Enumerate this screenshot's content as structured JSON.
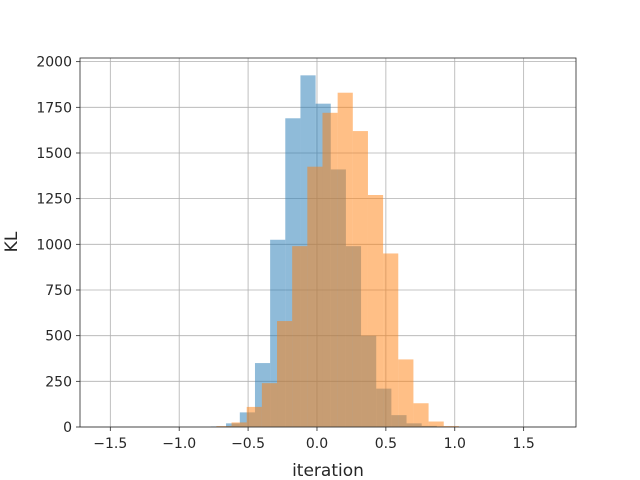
{
  "chart_data": {
    "type": "bar",
    "title": "",
    "xlabel": "iteration",
    "ylabel": "KL",
    "xlim": [
      -1.72,
      1.88
    ],
    "ylim": [
      0,
      2020
    ],
    "grid": true,
    "legend": "none",
    "x_ticks": [
      -1.5,
      -1.0,
      -0.5,
      0.0,
      0.5,
      1.0,
      1.5
    ],
    "x_tick_labels": [
      "−1.5",
      "−1.0",
      "−0.5",
      "0.0",
      "0.5",
      "1.0",
      "1.5"
    ],
    "y_ticks": [
      0,
      250,
      500,
      750,
      1000,
      1250,
      1500,
      1750,
      2000
    ],
    "y_tick_labels": [
      "0",
      "250",
      "500",
      "750",
      "1000",
      "1250",
      "1500",
      "1750",
      "2000"
    ],
    "series": [
      {
        "color": "#1f77b4",
        "alpha": 0.5,
        "bins": [
          {
            "x0": -0.77,
            "x1": -0.66,
            "count": 3
          },
          {
            "x0": -0.66,
            "x1": -0.56,
            "count": 20
          },
          {
            "x0": -0.56,
            "x1": -0.45,
            "count": 80
          },
          {
            "x0": -0.45,
            "x1": -0.34,
            "count": 350
          },
          {
            "x0": -0.34,
            "x1": -0.23,
            "count": 1025
          },
          {
            "x0": -0.23,
            "x1": -0.12,
            "count": 1690
          },
          {
            "x0": -0.12,
            "x1": -0.01,
            "count": 1925
          },
          {
            "x0": -0.01,
            "x1": 0.1,
            "count": 1770
          },
          {
            "x0": 0.1,
            "x1": 0.21,
            "count": 1410
          },
          {
            "x0": 0.21,
            "x1": 0.32,
            "count": 990
          },
          {
            "x0": 0.32,
            "x1": 0.43,
            "count": 500
          },
          {
            "x0": 0.43,
            "x1": 0.54,
            "count": 210
          },
          {
            "x0": 0.54,
            "x1": 0.65,
            "count": 65
          },
          {
            "x0": 0.65,
            "x1": 0.76,
            "count": 20
          },
          {
            "x0": 0.76,
            "x1": 0.87,
            "count": 6
          },
          {
            "x0": 0.87,
            "x1": 0.98,
            "count": 2
          }
        ]
      },
      {
        "color": "#ff7f0e",
        "alpha": 0.5,
        "bins": [
          {
            "x0": -0.73,
            "x1": -0.62,
            "count": 5
          },
          {
            "x0": -0.62,
            "x1": -0.51,
            "count": 25
          },
          {
            "x0": -0.51,
            "x1": -0.4,
            "count": 110
          },
          {
            "x0": -0.4,
            "x1": -0.29,
            "count": 240
          },
          {
            "x0": -0.29,
            "x1": -0.18,
            "count": 580
          },
          {
            "x0": -0.18,
            "x1": -0.07,
            "count": 990
          },
          {
            "x0": -0.07,
            "x1": 0.04,
            "count": 1425
          },
          {
            "x0": 0.04,
            "x1": 0.15,
            "count": 1720
          },
          {
            "x0": 0.15,
            "x1": 0.26,
            "count": 1830
          },
          {
            "x0": 0.26,
            "x1": 0.37,
            "count": 1620
          },
          {
            "x0": 0.37,
            "x1": 0.48,
            "count": 1270
          },
          {
            "x0": 0.48,
            "x1": 0.59,
            "count": 950
          },
          {
            "x0": 0.59,
            "x1": 0.7,
            "count": 370
          },
          {
            "x0": 0.7,
            "x1": 0.81,
            "count": 130
          },
          {
            "x0": 0.81,
            "x1": 0.92,
            "count": 30
          },
          {
            "x0": 0.92,
            "x1": 1.03,
            "count": 5
          }
        ]
      }
    ]
  }
}
